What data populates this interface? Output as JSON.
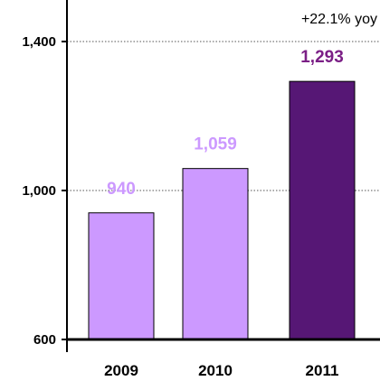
{
  "chart_data": {
    "type": "bar",
    "categories": [
      "2009",
      "2010",
      "2011"
    ],
    "values": [
      940,
      1059,
      1293
    ],
    "data_labels": [
      "940",
      "1,059",
      "1,293"
    ],
    "yticks": [
      600,
      1000,
      1400
    ],
    "ytick_labels": [
      "600",
      "1,000",
      "1,400"
    ],
    "ylim": [
      600,
      1400
    ],
    "grid": true,
    "annotation": "+22.1% yoy",
    "colors": {
      "bars": [
        "#cc99ff",
        "#cc99ff",
        "#561775"
      ],
      "labels": [
        "#cc99ff",
        "#cc99ff",
        "#7b1f86"
      ],
      "axis": "#000000",
      "grid": "#555555"
    }
  }
}
